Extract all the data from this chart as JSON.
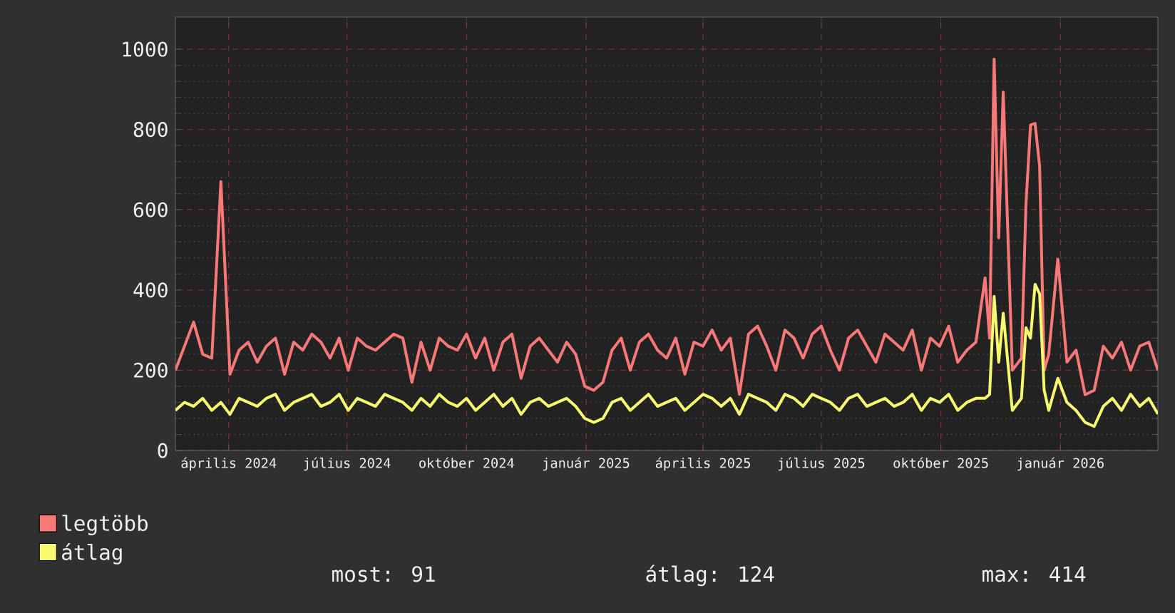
{
  "chart_data": {
    "type": "line",
    "x": [
      "2024-02-20",
      "2024-02-27",
      "2024-03-05",
      "2024-03-12",
      "2024-03-19",
      "2024-03-26",
      "2024-04-02",
      "2024-04-09",
      "2024-04-16",
      "2024-04-23",
      "2024-04-30",
      "2024-05-07",
      "2024-05-14",
      "2024-05-21",
      "2024-05-28",
      "2024-06-04",
      "2024-06-11",
      "2024-06-18",
      "2024-06-25",
      "2024-07-02",
      "2024-07-09",
      "2024-07-16",
      "2024-07-23",
      "2024-07-30",
      "2024-08-06",
      "2024-08-13",
      "2024-08-20",
      "2024-08-27",
      "2024-09-03",
      "2024-09-10",
      "2024-09-17",
      "2024-09-24",
      "2024-10-01",
      "2024-10-08",
      "2024-10-15",
      "2024-10-22",
      "2024-10-29",
      "2024-11-05",
      "2024-11-12",
      "2024-11-19",
      "2024-11-26",
      "2024-12-03",
      "2024-12-10",
      "2024-12-17",
      "2024-12-24",
      "2024-12-31",
      "2025-01-07",
      "2025-01-14",
      "2025-01-21",
      "2025-01-28",
      "2025-02-04",
      "2025-02-11",
      "2025-02-18",
      "2025-02-25",
      "2025-03-04",
      "2025-03-11",
      "2025-03-18",
      "2025-03-25",
      "2025-04-01",
      "2025-04-08",
      "2025-04-15",
      "2025-04-22",
      "2025-04-29",
      "2025-05-06",
      "2025-05-13",
      "2025-05-20",
      "2025-05-27",
      "2025-06-03",
      "2025-06-10",
      "2025-06-17",
      "2025-06-24",
      "2025-07-01",
      "2025-07-08",
      "2025-07-15",
      "2025-07-22",
      "2025-07-29",
      "2025-08-05",
      "2025-08-12",
      "2025-08-19",
      "2025-08-26",
      "2025-09-02",
      "2025-09-09",
      "2025-09-16",
      "2025-09-23",
      "2025-09-30",
      "2025-10-07",
      "2025-10-14",
      "2025-10-21",
      "2025-10-28",
      "2025-11-04",
      "2025-11-07T12:00",
      "2025-11-11",
      "2025-11-14T12:00",
      "2025-11-18",
      "2025-11-25",
      "2025-12-02",
      "2025-12-05T12:00",
      "2025-12-09",
      "2025-12-12T12:00",
      "2025-12-16",
      "2025-12-19T12:00",
      "2025-12-23",
      "2025-12-30",
      "2026-01-06",
      "2026-01-13",
      "2026-01-20",
      "2026-01-27",
      "2026-02-03",
      "2026-02-10",
      "2026-02-17",
      "2026-02-24",
      "2026-03-03",
      "2026-03-10",
      "2026-03-17"
    ],
    "series": [
      {
        "name": "legtöbb",
        "color": "#f87878",
        "values": [
          200,
          260,
          320,
          240,
          230,
          670,
          190,
          250,
          270,
          220,
          260,
          280,
          190,
          270,
          250,
          290,
          270,
          230,
          280,
          200,
          280,
          260,
          250,
          270,
          290,
          280,
          170,
          270,
          200,
          280,
          260,
          250,
          290,
          230,
          280,
          200,
          270,
          290,
          180,
          260,
          280,
          250,
          220,
          270,
          240,
          160,
          150,
          170,
          250,
          280,
          200,
          270,
          290,
          250,
          230,
          280,
          190,
          270,
          260,
          300,
          250,
          280,
          140,
          290,
          310,
          260,
          200,
          300,
          280,
          230,
          290,
          310,
          250,
          200,
          280,
          300,
          260,
          220,
          290,
          270,
          250,
          300,
          200,
          280,
          260,
          310,
          220,
          250,
          270,
          430,
          280,
          975,
          530,
          893,
          200,
          230,
          615,
          811,
          815,
          708,
          200,
          240,
          477,
          220,
          250,
          139,
          150,
          260,
          230,
          270,
          200,
          260,
          270,
          200
        ]
      },
      {
        "name": "átlag",
        "color": "#f8f870",
        "values": [
          100,
          120,
          110,
          130,
          100,
          120,
          90,
          130,
          120,
          110,
          130,
          140,
          100,
          120,
          130,
          140,
          110,
          120,
          140,
          100,
          130,
          120,
          110,
          140,
          130,
          120,
          100,
          130,
          110,
          140,
          120,
          110,
          130,
          100,
          120,
          140,
          110,
          130,
          90,
          120,
          130,
          110,
          120,
          130,
          110,
          80,
          70,
          80,
          120,
          130,
          100,
          120,
          140,
          110,
          120,
          130,
          100,
          120,
          140,
          130,
          110,
          130,
          90,
          140,
          130,
          120,
          100,
          140,
          130,
          110,
          140,
          130,
          120,
          100,
          130,
          140,
          110,
          120,
          130,
          110,
          120,
          140,
          100,
          130,
          120,
          140,
          100,
          120,
          130,
          130,
          140,
          384,
          220,
          342,
          100,
          130,
          306,
          280,
          414,
          390,
          150,
          100,
          180,
          120,
          100,
          70,
          60,
          110,
          130,
          100,
          140,
          110,
          130,
          91
        ]
      }
    ],
    "xlim": [
      "2024-02-20",
      "2026-03-17"
    ],
    "xticks": [
      {
        "value": "2024-04-01",
        "label": "április 2024"
      },
      {
        "value": "2024-07-01",
        "label": "július 2024"
      },
      {
        "value": "2024-10-01",
        "label": "október 2024"
      },
      {
        "value": "2025-01-01",
        "label": "január 2025"
      },
      {
        "value": "2025-04-01",
        "label": "április 2025"
      },
      {
        "value": "2025-07-01",
        "label": "július 2025"
      },
      {
        "value": "2025-10-01",
        "label": "október 2025"
      },
      {
        "value": "2026-01-01",
        "label": "január 2026"
      }
    ],
    "ylim": [
      0,
      1080
    ],
    "yticks": [
      0,
      200,
      400,
      600,
      800,
      1000
    ],
    "grid": true,
    "legend": "bottom left",
    "marker": "none",
    "line_style": "solid",
    "annotations": [
      "most: 91",
      "átlag: 124",
      "max: 414"
    ]
  }
}
